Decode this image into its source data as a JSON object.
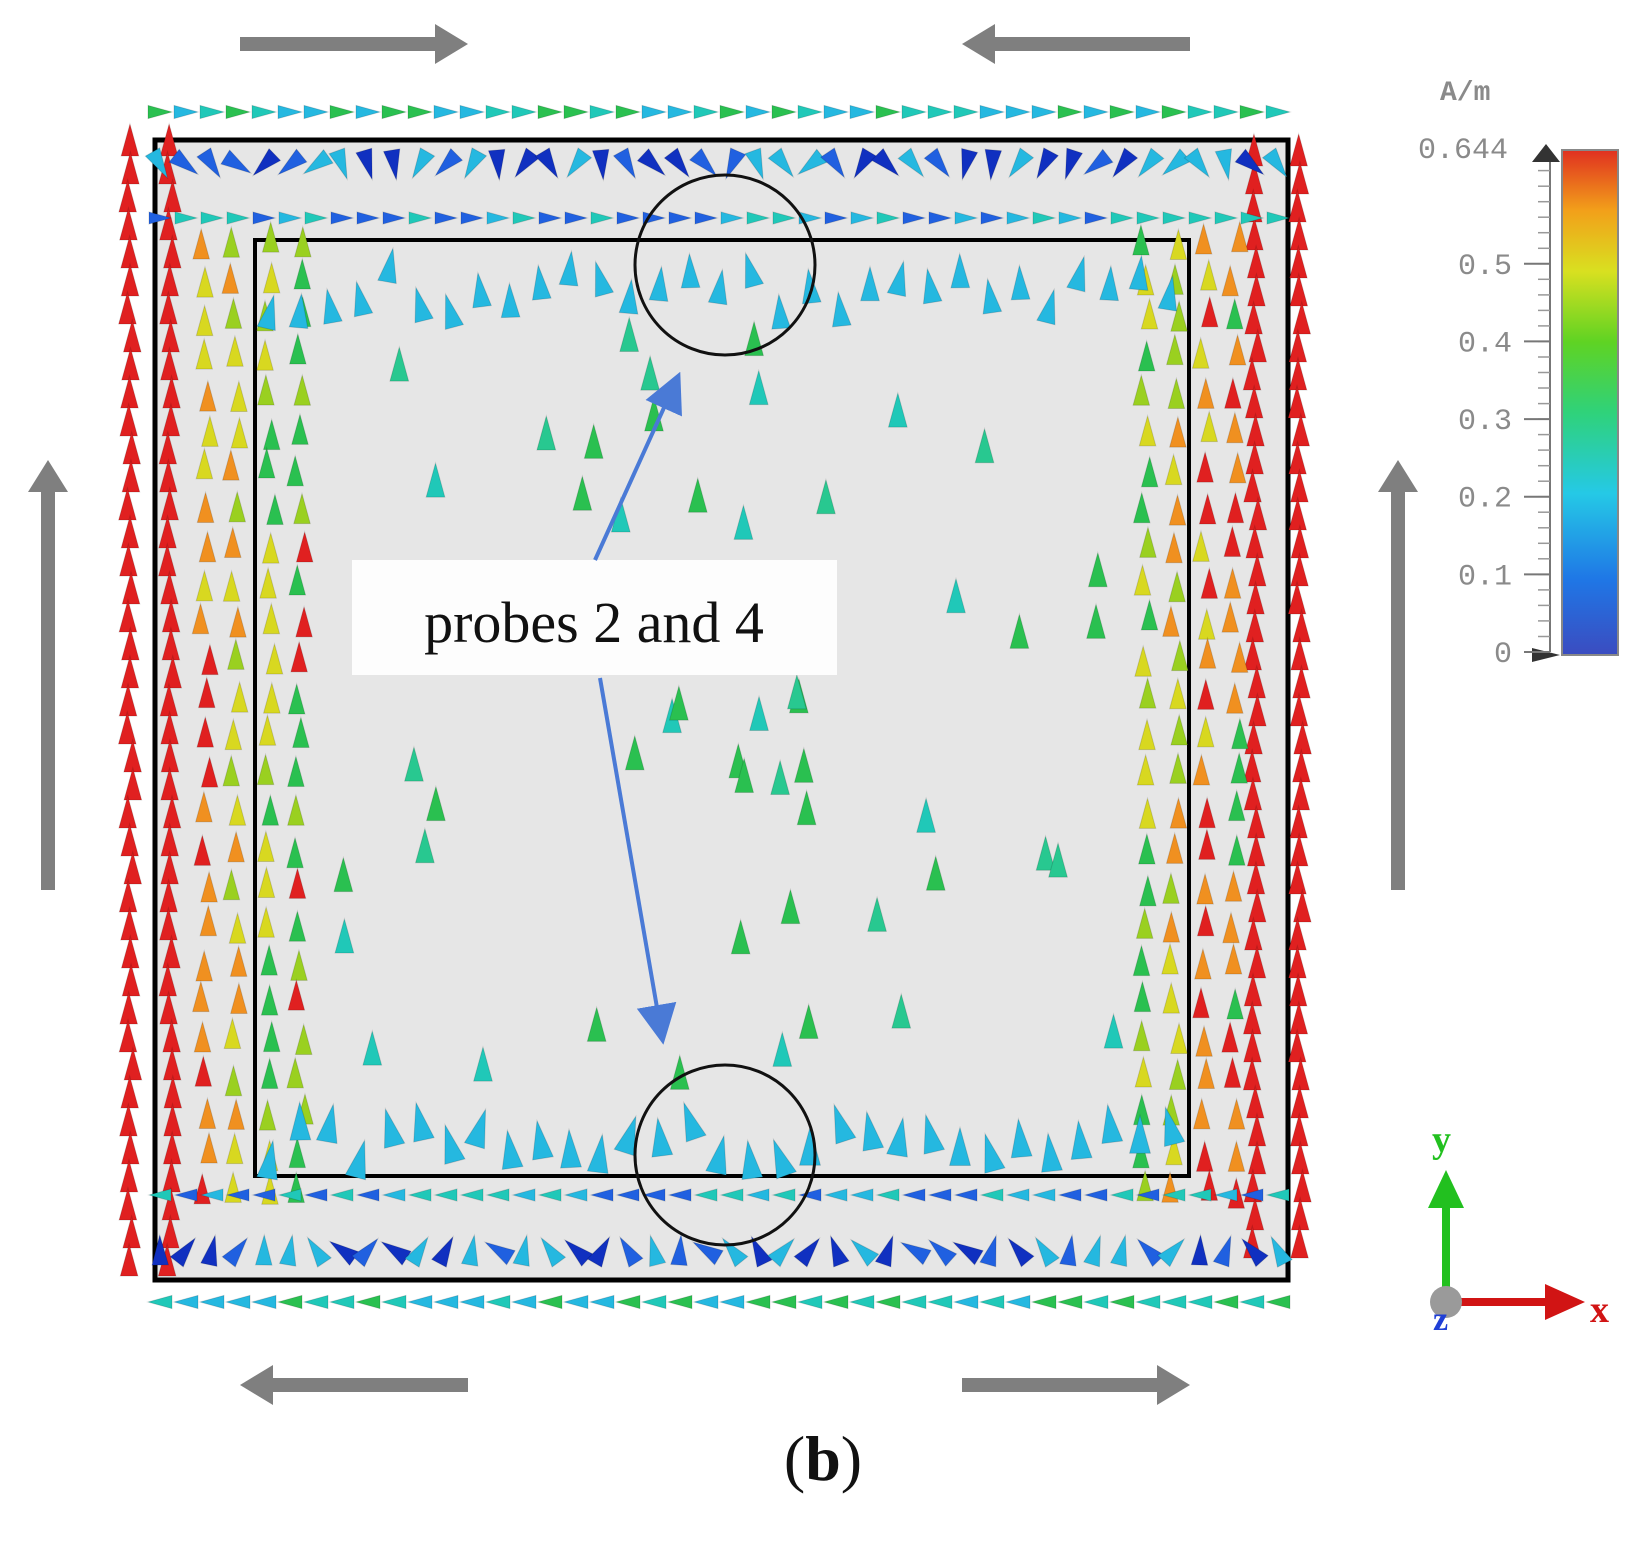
{
  "figure": {
    "annotation": "probes 2 and 4",
    "panel_label": "(b)",
    "panel_letter": "b"
  },
  "colorbar": {
    "unit": "A/m",
    "max_label": "0.644",
    "ticks": [
      "0.5",
      "0.4",
      "0.3",
      "0.2",
      "0.1",
      "0"
    ],
    "tick_values": [
      0.5,
      0.4,
      0.3,
      0.2,
      0.1,
      0
    ],
    "max_value": 0.644,
    "colors": [
      "#3b4cc0",
      "#1f77e6",
      "#25c9e6",
      "#2fd27a",
      "#5fd323",
      "#d9e020",
      "#f2a01a",
      "#e03020"
    ]
  },
  "axes_triad": {
    "y_label": "y",
    "x_label": "x",
    "z_label": "z",
    "y_color": "#22c01f",
    "x_color": "#d11414",
    "z_color": "#1f3fd6"
  },
  "colors": {
    "outer_rect": "#000000",
    "plate_fill": "#e6e6e6",
    "flow_arrows": "#7f7f7f",
    "pointer_arrows": "#4a7ad6",
    "high_field": "#e02020"
  }
}
